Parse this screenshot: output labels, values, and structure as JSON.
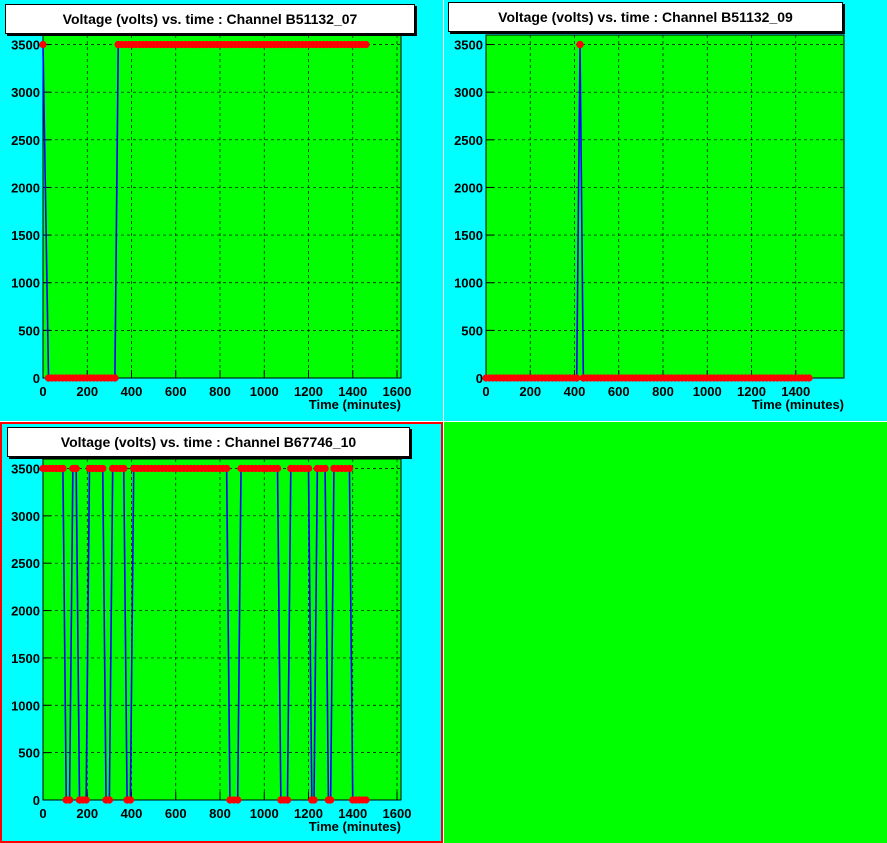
{
  "colors": {
    "pad_background": "#00ffff",
    "frame_background": "#00ff00",
    "empty_pad": "#00ff00",
    "line": "#0000ff",
    "marker": "#ff0000",
    "grid": "#000000",
    "selected_pad_border": "#ff0000"
  },
  "chart_data": [
    {
      "type": "line",
      "title": "Voltage (volts) vs. time  : Channel B51132_07",
      "xlabel": "Time (minutes)",
      "ylabel": "",
      "xlim": [
        0,
        1600
      ],
      "ylim": [
        0,
        3600
      ],
      "xticks": [
        0,
        200,
        400,
        600,
        800,
        1000,
        1200,
        1400,
        1600
      ],
      "yticks": [
        0,
        500,
        1000,
        1500,
        2000,
        2500,
        3000,
        3500
      ],
      "grid": true,
      "markers": true,
      "segments": [
        {
          "x": [
            0,
            25
          ],
          "y": [
            3500,
            0
          ]
        },
        {
          "x": [
            25,
            325
          ],
          "y": [
            0,
            0
          ]
        },
        {
          "x": [
            325,
            340
          ],
          "y": [
            0,
            3500
          ]
        },
        {
          "x": [
            340,
            1460
          ],
          "y": [
            3500,
            3500
          ]
        }
      ]
    },
    {
      "type": "line",
      "title": "Voltage (volts) vs. time  : Channel B51132_09",
      "xlabel": "Time (minutes)",
      "ylabel": "",
      "xlim": [
        0,
        1600
      ],
      "ylim": [
        0,
        3600
      ],
      "xticks": [
        0,
        200,
        400,
        600,
        800,
        1000,
        1200,
        1400
      ],
      "yticks": [
        0,
        500,
        1000,
        1500,
        2000,
        2500,
        3000,
        3500
      ],
      "grid": true,
      "markers": true,
      "segments": [
        {
          "x": [
            0,
            410
          ],
          "y": [
            0,
            0
          ]
        },
        {
          "x": [
            410,
            425
          ],
          "y": [
            0,
            3500
          ]
        },
        {
          "x": [
            425,
            440
          ],
          "y": [
            3500,
            0
          ]
        },
        {
          "x": [
            440,
            1460
          ],
          "y": [
            0,
            0
          ]
        }
      ]
    },
    {
      "type": "line",
      "title": "Voltage (volts) vs. time  : Channel B67746_10",
      "xlabel": "Time (minutes)",
      "ylabel": "",
      "xlim": [
        0,
        1600
      ],
      "ylim": [
        0,
        3600
      ],
      "xticks": [
        0,
        200,
        400,
        600,
        800,
        1000,
        1200,
        1400,
        1600
      ],
      "yticks": [
        0,
        500,
        1000,
        1500,
        2000,
        2500,
        3000,
        3500
      ],
      "grid": true,
      "markers": true,
      "segments": [
        {
          "x": [
            0,
            90
          ],
          "y": [
            3500,
            3500
          ]
        },
        {
          "x": [
            90,
            105
          ],
          "y": [
            3500,
            0
          ]
        },
        {
          "x": [
            105,
            120
          ],
          "y": [
            0,
            0
          ]
        },
        {
          "x": [
            120,
            135
          ],
          "y": [
            0,
            3500
          ]
        },
        {
          "x": [
            135,
            150
          ],
          "y": [
            3500,
            3500
          ]
        },
        {
          "x": [
            150,
            165
          ],
          "y": [
            3500,
            0
          ]
        },
        {
          "x": [
            165,
            195
          ],
          "y": [
            0,
            0
          ]
        },
        {
          "x": [
            195,
            210
          ],
          "y": [
            0,
            3500
          ]
        },
        {
          "x": [
            210,
            270
          ],
          "y": [
            3500,
            3500
          ]
        },
        {
          "x": [
            270,
            285
          ],
          "y": [
            3500,
            0
          ]
        },
        {
          "x": [
            285,
            300
          ],
          "y": [
            0,
            0
          ]
        },
        {
          "x": [
            300,
            315
          ],
          "y": [
            0,
            3500
          ]
        },
        {
          "x": [
            315,
            365
          ],
          "y": [
            3500,
            3500
          ]
        },
        {
          "x": [
            365,
            380
          ],
          "y": [
            3500,
            0
          ]
        },
        {
          "x": [
            380,
            395
          ],
          "y": [
            0,
            0
          ]
        },
        {
          "x": [
            395,
            410
          ],
          "y": [
            0,
            3500
          ]
        },
        {
          "x": [
            410,
            830
          ],
          "y": [
            3500,
            3500
          ]
        },
        {
          "x": [
            830,
            845
          ],
          "y": [
            3500,
            0
          ]
        },
        {
          "x": [
            845,
            880
          ],
          "y": [
            0,
            0
          ]
        },
        {
          "x": [
            880,
            895
          ],
          "y": [
            0,
            3500
          ]
        },
        {
          "x": [
            895,
            1060
          ],
          "y": [
            3500,
            3500
          ]
        },
        {
          "x": [
            1060,
            1075
          ],
          "y": [
            3500,
            0
          ]
        },
        {
          "x": [
            1075,
            1105
          ],
          "y": [
            0,
            0
          ]
        },
        {
          "x": [
            1105,
            1120
          ],
          "y": [
            0,
            3500
          ]
        },
        {
          "x": [
            1120,
            1200
          ],
          "y": [
            3500,
            3500
          ]
        },
        {
          "x": [
            1200,
            1215
          ],
          "y": [
            3500,
            0
          ]
        },
        {
          "x": [
            1215,
            1225
          ],
          "y": [
            0,
            0
          ]
        },
        {
          "x": [
            1225,
            1240
          ],
          "y": [
            0,
            3500
          ]
        },
        {
          "x": [
            1240,
            1275
          ],
          "y": [
            3500,
            3500
          ]
        },
        {
          "x": [
            1275,
            1290
          ],
          "y": [
            3500,
            0
          ]
        },
        {
          "x": [
            1290,
            1300
          ],
          "y": [
            0,
            0
          ]
        },
        {
          "x": [
            1300,
            1315
          ],
          "y": [
            0,
            3500
          ]
        },
        {
          "x": [
            1315,
            1385
          ],
          "y": [
            3500,
            3500
          ]
        },
        {
          "x": [
            1385,
            1400
          ],
          "y": [
            3500,
            0
          ]
        },
        {
          "x": [
            1400,
            1460
          ],
          "y": [
            0,
            0
          ]
        }
      ]
    }
  ]
}
